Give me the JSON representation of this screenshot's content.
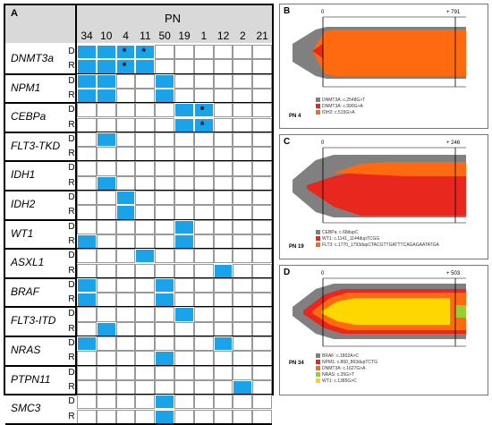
{
  "panelA": {
    "letter": "A",
    "header": "PN",
    "columns": [
      "34",
      "10",
      "4",
      "11",
      "50",
      "19",
      "1",
      "12",
      "2",
      "21"
    ],
    "rowLabels": [
      "D",
      "R"
    ],
    "genes": [
      {
        "name": "DNMT3a",
        "D": [
          0,
          1,
          2,
          3
        ],
        "R": [
          0,
          1,
          2,
          3
        ],
        "stars": [
          {
            "row": "D",
            "col": 2
          },
          {
            "row": "D",
            "col": 3
          },
          {
            "row": "R",
            "col": 2
          }
        ]
      },
      {
        "name": "NPM1",
        "D": [
          0,
          1,
          4
        ],
        "R": [
          0,
          1,
          4
        ],
        "stars": []
      },
      {
        "name": "CEBPa",
        "D": [
          5,
          6
        ],
        "R": [
          5,
          6
        ],
        "stars": [
          {
            "row": "D",
            "col": 6
          },
          {
            "row": "R",
            "col": 6
          }
        ]
      },
      {
        "name": "FLT3-TKD",
        "D": [
          1
        ],
        "R": [],
        "stars": []
      },
      {
        "name": "IDH1",
        "D": [],
        "R": [
          1
        ],
        "stars": []
      },
      {
        "name": "IDH2",
        "D": [
          2
        ],
        "R": [
          2
        ],
        "stars": []
      },
      {
        "name": "WT1",
        "D": [
          5
        ],
        "R": [
          0,
          5
        ],
        "stars": []
      },
      {
        "name": "ASXL1",
        "D": [
          3
        ],
        "R": [
          7
        ],
        "stars": []
      },
      {
        "name": "BRAF",
        "D": [
          0,
          4
        ],
        "R": [
          0,
          4
        ],
        "stars": []
      },
      {
        "name": "FLT3-ITD",
        "D": [
          5
        ],
        "R": [
          1
        ],
        "stars": []
      },
      {
        "name": "NRAS",
        "D": [
          0,
          7
        ],
        "R": [
          4
        ],
        "stars": []
      },
      {
        "name": "PTPN11",
        "D": [],
        "R": [
          8
        ],
        "stars": []
      },
      {
        "name": "SMC3",
        "D": [
          4
        ],
        "R": [
          4
        ],
        "stars": []
      }
    ],
    "star_char": "*",
    "on_color": "#1aa3e8"
  },
  "panelB": {
    "letter": "B",
    "tick_left": "0",
    "tick_right": "+ 791",
    "pn": "PN 4",
    "legend": [
      {
        "label": "DNMT3A: c.2548G>T",
        "color": "#808080"
      },
      {
        "label": "DNMT3A: c.990G>A",
        "color": "#e8281e"
      },
      {
        "label": "IDH2: c.515G>A",
        "color": "#ff6a10"
      }
    ]
  },
  "panelC": {
    "letter": "C",
    "tick_left": "0",
    "tick_right": "+ 246",
    "pn": "PN 19",
    "legend": [
      {
        "label": "CEBPa: c.68dupC",
        "color": "#808080"
      },
      {
        "label": "WT1: c.1141_1144dupTCGG",
        "color": "#e8281e"
      },
      {
        "label": "FLT3: c.1770_1793dupCTACGTTGATTTCAGAGAATATGA",
        "color": "#ff6a10"
      }
    ]
  },
  "panelD": {
    "letter": "D",
    "tick_left": "0",
    "tick_right": "+ 503",
    "pn": "PN 34",
    "legend": [
      {
        "label": "BRAF: c.1802A>C",
        "color": "#808080"
      },
      {
        "label": "NPM1: c.860_863dupTCTG",
        "color": "#e8281e"
      },
      {
        "label": "DNMT3A: c.1627G>A",
        "color": "#ff6a10"
      },
      {
        "label": "NRAS: c.35G>T",
        "color": "#9acd32"
      },
      {
        "label": "WT1: c.1385G>C",
        "color": "#ffd700"
      }
    ]
  }
}
